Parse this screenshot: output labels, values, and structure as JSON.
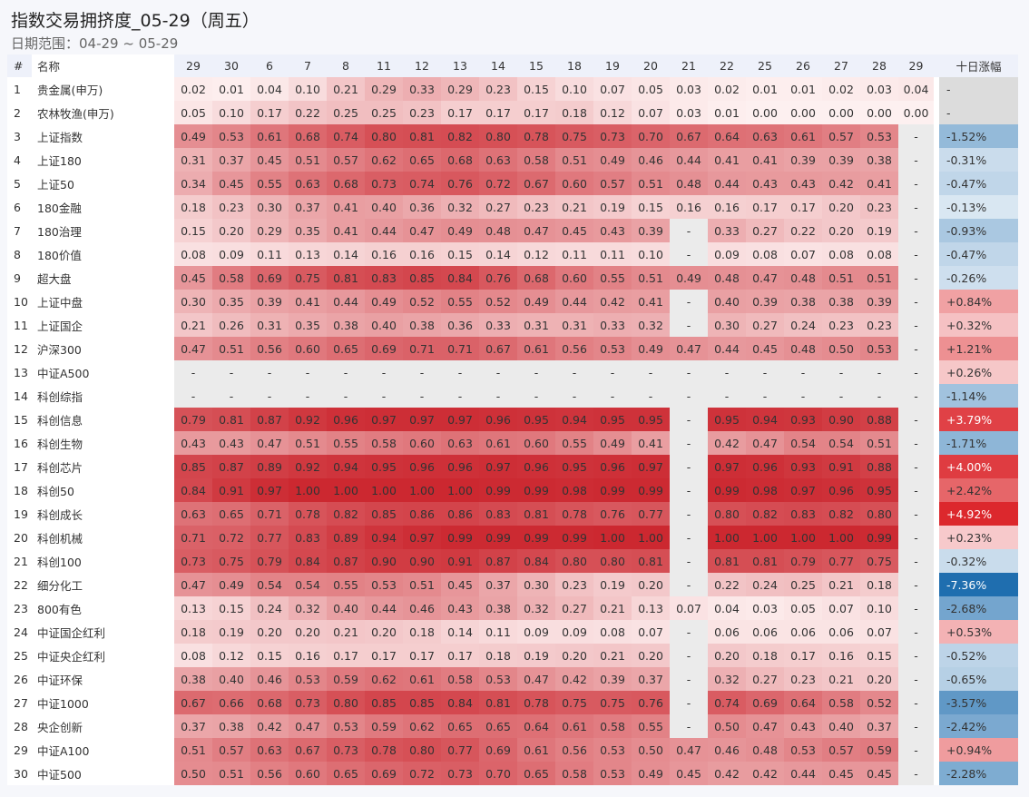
{
  "header": {
    "title": "指数交易拥挤度_05-29（周五）",
    "subtitle": "日期范围：04-29 ~ 05-29"
  },
  "table": {
    "columns": [
      "#",
      "名称",
      "29",
      "30",
      "6",
      "7",
      "8",
      "11",
      "12",
      "13",
      "14",
      "15",
      "18",
      "19",
      "20",
      "21",
      "22",
      "25",
      "26",
      "27",
      "28",
      "29",
      "十日涨幅"
    ],
    "rows": [
      [
        "1",
        "贵金属(申万)",
        "0.02",
        "0.01",
        "0.04",
        "0.10",
        "0.21",
        "0.29",
        "0.33",
        "0.29",
        "0.23",
        "0.15",
        "0.10",
        "0.07",
        "0.05",
        "0.03",
        "0.02",
        "0.01",
        "0.01",
        "0.02",
        "0.03",
        "0.04",
        "-"
      ],
      [
        "2",
        "农林牧渔(申万)",
        "0.05",
        "0.10",
        "0.17",
        "0.22",
        "0.25",
        "0.25",
        "0.23",
        "0.17",
        "0.17",
        "0.17",
        "0.18",
        "0.12",
        "0.07",
        "0.03",
        "0.01",
        "0.00",
        "0.00",
        "0.00",
        "0.00",
        "0.00",
        "-"
      ],
      [
        "3",
        "上证指数",
        "0.49",
        "0.53",
        "0.61",
        "0.68",
        "0.74",
        "0.80",
        "0.81",
        "0.82",
        "0.80",
        "0.78",
        "0.75",
        "0.73",
        "0.70",
        "0.67",
        "0.64",
        "0.63",
        "0.61",
        "0.57",
        "0.53",
        "-",
        "-1.52%"
      ],
      [
        "4",
        "上证180",
        "0.31",
        "0.37",
        "0.45",
        "0.51",
        "0.57",
        "0.62",
        "0.65",
        "0.68",
        "0.63",
        "0.58",
        "0.51",
        "0.49",
        "0.46",
        "0.44",
        "0.41",
        "0.41",
        "0.39",
        "0.39",
        "0.38",
        "-",
        "-0.31%"
      ],
      [
        "5",
        "上证50",
        "0.34",
        "0.45",
        "0.55",
        "0.63",
        "0.68",
        "0.73",
        "0.74",
        "0.76",
        "0.72",
        "0.67",
        "0.60",
        "0.57",
        "0.51",
        "0.48",
        "0.44",
        "0.43",
        "0.43",
        "0.42",
        "0.41",
        "-",
        "-0.47%"
      ],
      [
        "6",
        "180金融",
        "0.18",
        "0.23",
        "0.30",
        "0.37",
        "0.41",
        "0.40",
        "0.36",
        "0.32",
        "0.27",
        "0.23",
        "0.21",
        "0.19",
        "0.15",
        "0.16",
        "0.16",
        "0.17",
        "0.17",
        "0.20",
        "0.23",
        "-",
        "-0.13%"
      ],
      [
        "7",
        "180治理",
        "0.15",
        "0.20",
        "0.29",
        "0.35",
        "0.41",
        "0.44",
        "0.47",
        "0.49",
        "0.48",
        "0.47",
        "0.45",
        "0.43",
        "0.39",
        "-",
        "0.33",
        "0.27",
        "0.22",
        "0.20",
        "0.19",
        "-",
        "-0.93%"
      ],
      [
        "8",
        "180价值",
        "0.08",
        "0.09",
        "0.11",
        "0.13",
        "0.14",
        "0.16",
        "0.16",
        "0.15",
        "0.14",
        "0.12",
        "0.11",
        "0.11",
        "0.10",
        "-",
        "0.09",
        "0.08",
        "0.07",
        "0.08",
        "0.08",
        "-",
        "-0.47%"
      ],
      [
        "9",
        "超大盘",
        "0.45",
        "0.58",
        "0.69",
        "0.75",
        "0.81",
        "0.83",
        "0.85",
        "0.84",
        "0.76",
        "0.68",
        "0.60",
        "0.55",
        "0.51",
        "0.49",
        "0.48",
        "0.47",
        "0.48",
        "0.51",
        "0.51",
        "-",
        "-0.26%"
      ],
      [
        "10",
        "上证中盘",
        "0.30",
        "0.35",
        "0.39",
        "0.41",
        "0.44",
        "0.49",
        "0.52",
        "0.55",
        "0.52",
        "0.49",
        "0.44",
        "0.42",
        "0.41",
        "-",
        "0.40",
        "0.39",
        "0.38",
        "0.38",
        "0.39",
        "-",
        "+0.84%"
      ],
      [
        "11",
        "上证国企",
        "0.21",
        "0.26",
        "0.31",
        "0.35",
        "0.38",
        "0.40",
        "0.38",
        "0.36",
        "0.33",
        "0.31",
        "0.31",
        "0.33",
        "0.32",
        "-",
        "0.30",
        "0.27",
        "0.24",
        "0.23",
        "0.23",
        "-",
        "+0.32%"
      ],
      [
        "12",
        "沪深300",
        "0.47",
        "0.51",
        "0.56",
        "0.60",
        "0.65",
        "0.69",
        "0.71",
        "0.71",
        "0.67",
        "0.61",
        "0.56",
        "0.53",
        "0.49",
        "0.47",
        "0.44",
        "0.45",
        "0.48",
        "0.50",
        "0.53",
        "-",
        "+1.21%"
      ],
      [
        "13",
        "中证A500",
        "-",
        "-",
        "-",
        "-",
        "-",
        "-",
        "-",
        "-",
        "-",
        "-",
        "-",
        "-",
        "-",
        "-",
        "-",
        "-",
        "-",
        "-",
        "-",
        "-",
        "+0.26%"
      ],
      [
        "14",
        "科创综指",
        "-",
        "-",
        "-",
        "-",
        "-",
        "-",
        "-",
        "-",
        "-",
        "-",
        "-",
        "-",
        "-",
        "-",
        "-",
        "-",
        "-",
        "-",
        "-",
        "-",
        "-1.14%"
      ],
      [
        "15",
        "科创信息",
        "0.79",
        "0.81",
        "0.87",
        "0.92",
        "0.96",
        "0.97",
        "0.97",
        "0.97",
        "0.96",
        "0.95",
        "0.94",
        "0.95",
        "0.95",
        "-",
        "0.95",
        "0.94",
        "0.93",
        "0.90",
        "0.88",
        "-",
        "+3.79%"
      ],
      [
        "16",
        "科创生物",
        "0.43",
        "0.43",
        "0.47",
        "0.51",
        "0.55",
        "0.58",
        "0.60",
        "0.63",
        "0.61",
        "0.60",
        "0.55",
        "0.49",
        "0.41",
        "-",
        "0.42",
        "0.47",
        "0.54",
        "0.54",
        "0.51",
        "-",
        "-1.71%"
      ],
      [
        "17",
        "科创芯片",
        "0.85",
        "0.87",
        "0.89",
        "0.92",
        "0.94",
        "0.95",
        "0.96",
        "0.96",
        "0.97",
        "0.96",
        "0.95",
        "0.96",
        "0.97",
        "-",
        "0.97",
        "0.96",
        "0.93",
        "0.91",
        "0.88",
        "-",
        "+4.00%"
      ],
      [
        "18",
        "科创50",
        "0.84",
        "0.91",
        "0.97",
        "1.00",
        "1.00",
        "1.00",
        "1.00",
        "1.00",
        "0.99",
        "0.99",
        "0.98",
        "0.99",
        "0.99",
        "-",
        "0.99",
        "0.98",
        "0.97",
        "0.96",
        "0.95",
        "-",
        "+2.42%"
      ],
      [
        "19",
        "科创成长",
        "0.63",
        "0.65",
        "0.71",
        "0.78",
        "0.82",
        "0.85",
        "0.86",
        "0.86",
        "0.83",
        "0.81",
        "0.78",
        "0.76",
        "0.77",
        "-",
        "0.80",
        "0.82",
        "0.83",
        "0.82",
        "0.80",
        "-",
        "+4.92%"
      ],
      [
        "20",
        "科创机械",
        "0.71",
        "0.72",
        "0.77",
        "0.83",
        "0.89",
        "0.94",
        "0.97",
        "0.99",
        "0.99",
        "0.99",
        "0.99",
        "1.00",
        "1.00",
        "-",
        "1.00",
        "1.00",
        "1.00",
        "1.00",
        "0.99",
        "-",
        "+0.23%"
      ],
      [
        "21",
        "科创100",
        "0.73",
        "0.75",
        "0.79",
        "0.84",
        "0.87",
        "0.90",
        "0.90",
        "0.91",
        "0.87",
        "0.84",
        "0.80",
        "0.80",
        "0.81",
        "-",
        "0.81",
        "0.81",
        "0.79",
        "0.77",
        "0.75",
        "-",
        "-0.32%"
      ],
      [
        "22",
        "细分化工",
        "0.47",
        "0.49",
        "0.54",
        "0.54",
        "0.55",
        "0.53",
        "0.51",
        "0.45",
        "0.37",
        "0.30",
        "0.23",
        "0.19",
        "0.20",
        "-",
        "0.22",
        "0.24",
        "0.25",
        "0.21",
        "0.18",
        "-",
        "-7.36%"
      ],
      [
        "23",
        "800有色",
        "0.13",
        "0.15",
        "0.24",
        "0.32",
        "0.40",
        "0.44",
        "0.46",
        "0.43",
        "0.38",
        "0.32",
        "0.27",
        "0.21",
        "0.13",
        "0.07",
        "0.04",
        "0.03",
        "0.05",
        "0.07",
        "0.10",
        "-",
        "-2.68%"
      ],
      [
        "24",
        "中证国企红利",
        "0.18",
        "0.19",
        "0.20",
        "0.20",
        "0.21",
        "0.20",
        "0.18",
        "0.14",
        "0.11",
        "0.09",
        "0.09",
        "0.08",
        "0.07",
        "-",
        "0.06",
        "0.06",
        "0.06",
        "0.06",
        "0.07",
        "-",
        "+0.53%"
      ],
      [
        "25",
        "中证央企红利",
        "0.08",
        "0.12",
        "0.15",
        "0.16",
        "0.17",
        "0.17",
        "0.17",
        "0.17",
        "0.18",
        "0.19",
        "0.20",
        "0.21",
        "0.20",
        "-",
        "0.20",
        "0.18",
        "0.17",
        "0.16",
        "0.15",
        "-",
        "-0.52%"
      ],
      [
        "26",
        "中证环保",
        "0.38",
        "0.40",
        "0.46",
        "0.53",
        "0.59",
        "0.62",
        "0.61",
        "0.58",
        "0.53",
        "0.47",
        "0.42",
        "0.39",
        "0.37",
        "-",
        "0.32",
        "0.27",
        "0.23",
        "0.21",
        "0.20",
        "-",
        "-0.65%"
      ],
      [
        "27",
        "中证1000",
        "0.67",
        "0.66",
        "0.68",
        "0.73",
        "0.80",
        "0.85",
        "0.85",
        "0.84",
        "0.81",
        "0.78",
        "0.75",
        "0.75",
        "0.76",
        "-",
        "0.74",
        "0.69",
        "0.64",
        "0.58",
        "0.52",
        "-",
        "-3.57%"
      ],
      [
        "28",
        "央企创新",
        "0.37",
        "0.38",
        "0.42",
        "0.47",
        "0.53",
        "0.59",
        "0.62",
        "0.65",
        "0.65",
        "0.64",
        "0.61",
        "0.58",
        "0.55",
        "-",
        "0.50",
        "0.47",
        "0.43",
        "0.40",
        "0.37",
        "-",
        "-2.42%"
      ],
      [
        "29",
        "中证A100",
        "0.51",
        "0.57",
        "0.63",
        "0.67",
        "0.73",
        "0.78",
        "0.80",
        "0.77",
        "0.69",
        "0.61",
        "0.56",
        "0.53",
        "0.50",
        "0.47",
        "0.46",
        "0.48",
        "0.53",
        "0.57",
        "0.59",
        "-",
        "+0.94%"
      ],
      [
        "30",
        "中证500",
        "0.50",
        "0.51",
        "0.56",
        "0.60",
        "0.65",
        "0.69",
        "0.72",
        "0.73",
        "0.70",
        "0.65",
        "0.58",
        "0.53",
        "0.49",
        "0.45",
        "0.42",
        "0.42",
        "0.44",
        "0.45",
        "0.45",
        "-",
        "-2.28%"
      ]
    ]
  }
}
